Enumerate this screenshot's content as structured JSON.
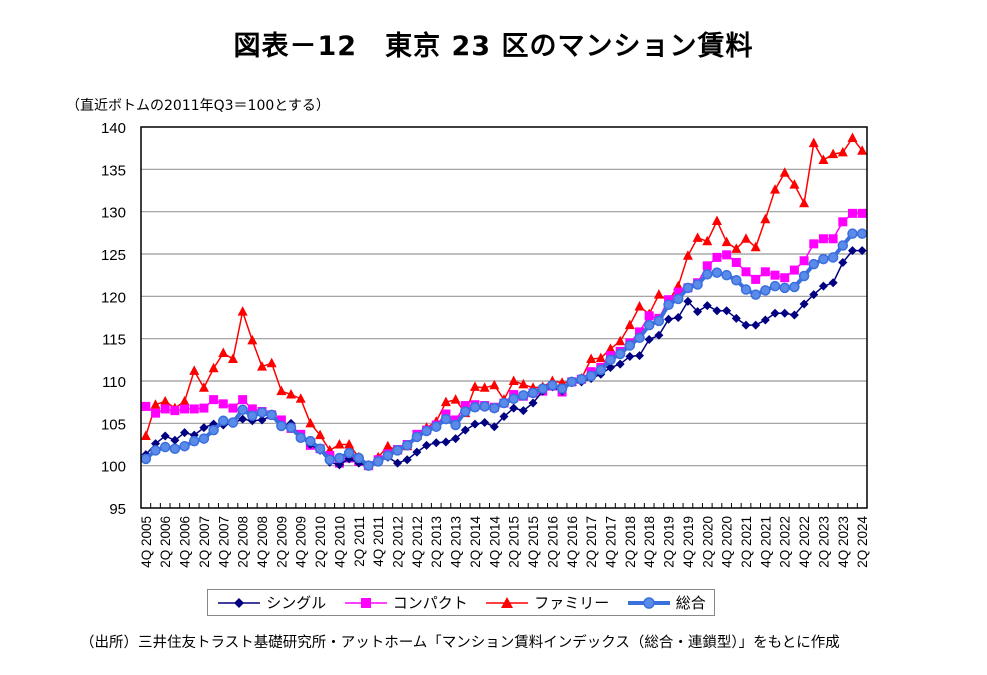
{
  "title": "図表－12　東京 23 区のマンション賃料",
  "subtitle": "（直近ボトムの2011年Q3＝100とする）",
  "source": "（出所）三井住友トラスト基礎研究所・アットホーム「マンション賃料インデックス（総合・連鎖型）」をもとに作成",
  "chart_data": {
    "type": "line",
    "title": "図表－12　東京 23 区のマンション賃料",
    "subtitle": "（直近ボトムの2011年Q3＝100とする）",
    "xlabel": "",
    "ylabel": "",
    "ylim": [
      95,
      140
    ],
    "yticks": [
      95,
      100,
      105,
      110,
      115,
      120,
      125,
      130,
      135,
      140
    ],
    "grid": true,
    "legend_position": "bottom",
    "x": [
      "4Q 2005",
      "1Q 2006",
      "2Q 2006",
      "3Q 2006",
      "4Q 2006",
      "1Q 2007",
      "2Q 2007",
      "3Q 2007",
      "4Q 2007",
      "1Q 2008",
      "2Q 2008",
      "3Q 2008",
      "4Q 2008",
      "1Q 2009",
      "2Q 2009",
      "3Q 2009",
      "4Q 2009",
      "1Q 2010",
      "2Q 2010",
      "3Q 2010",
      "4Q 2010",
      "1Q 2011",
      "2Q 2011",
      "3Q 2011",
      "4Q 2011",
      "1Q 2012",
      "2Q 2012",
      "3Q 2012",
      "4Q 2012",
      "1Q 2013",
      "2Q 2013",
      "3Q 2013",
      "4Q 2013",
      "1Q 2014",
      "2Q 2014",
      "3Q 2014",
      "4Q 2014",
      "1Q 2015",
      "2Q 2015",
      "3Q 2015",
      "4Q 2015",
      "1Q 2016",
      "2Q 2016",
      "3Q 2016",
      "4Q 2016",
      "1Q 2017",
      "2Q 2017",
      "3Q 2017",
      "4Q 2017",
      "1Q 2018",
      "2Q 2018",
      "3Q 2018",
      "4Q 2018",
      "1Q 2019",
      "2Q 2019",
      "3Q 2019",
      "4Q 2019",
      "1Q 2020",
      "2Q 2020",
      "3Q 2020",
      "4Q 2020",
      "1Q 2021",
      "2Q 2021",
      "3Q 2021",
      "4Q 2021",
      "1Q 2022",
      "2Q 2022",
      "3Q 2022",
      "4Q 2022",
      "1Q 2023",
      "2Q 2023",
      "3Q 2023",
      "4Q 2023",
      "1Q 2024",
      "2Q 2024"
    ],
    "tick_labels": [
      "4Q 2005",
      "2Q 2006",
      "4Q 2006",
      "2Q 2007",
      "4Q 2007",
      "2Q 2008",
      "4Q 2008",
      "2Q 2009",
      "4Q 2009",
      "2Q 2010",
      "4Q 2010",
      "2Q 2011",
      "4Q 2011",
      "2Q 2012",
      "4Q 2012",
      "2Q 2013",
      "4Q 2013",
      "2Q 2014",
      "4Q 2014",
      "2Q 2015",
      "4Q 2015",
      "2Q 2016",
      "4Q 2016",
      "2Q 2017",
      "4Q 2017",
      "2Q 2018",
      "4Q 2018",
      "2Q 2019",
      "4Q 2019",
      "2Q 2020",
      "4Q 2020",
      "2Q 2021",
      "4Q 2021",
      "2Q 2022",
      "4Q 2022",
      "2Q 2023",
      "4Q 2023",
      "2Q 2024"
    ],
    "series": [
      {
        "name": "シングル",
        "color": "#000080",
        "marker": "diamond",
        "values": [
          101.3,
          102.6,
          103.5,
          103.0,
          103.9,
          103.6,
          104.5,
          104.9,
          104.8,
          105.0,
          105.5,
          105.3,
          105.4,
          105.9,
          104.6,
          105.0,
          103.3,
          102.5,
          101.8,
          100.4,
          100.1,
          100.8,
          100.3,
          100.0,
          100.5,
          101.0,
          100.3,
          100.7,
          101.6,
          102.4,
          102.7,
          102.8,
          103.2,
          104.2,
          104.9,
          105.1,
          104.6,
          105.8,
          106.8,
          106.5,
          107.4,
          108.8,
          109.3,
          108.8,
          109.8,
          109.9,
          110.3,
          110.8,
          111.6,
          112.0,
          112.9,
          113.0,
          114.9,
          115.4,
          117.3,
          117.5,
          119.4,
          118.2,
          118.9,
          118.3,
          118.3,
          117.4,
          116.6,
          116.6,
          117.2,
          118.0,
          118.0,
          117.8,
          119.1,
          120.2,
          121.2,
          121.6,
          124.0,
          125.4,
          125.4
        ]
      },
      {
        "name": "コンパクト",
        "color": "#FF00FF",
        "marker": "square",
        "values": [
          107.0,
          106.2,
          106.7,
          106.5,
          106.7,
          106.7,
          106.8,
          107.8,
          107.3,
          106.8,
          107.8,
          106.7,
          106.4,
          106.0,
          105.4,
          104.4,
          103.7,
          102.4,
          102.0,
          101.2,
          100.3,
          100.9,
          100.5,
          100.0,
          100.7,
          101.4,
          101.9,
          102.5,
          103.7,
          104.2,
          104.8,
          106.1,
          105.4,
          107.1,
          107.2,
          107.1,
          106.9,
          107.4,
          108.4,
          108.2,
          108.6,
          108.8,
          109.4,
          108.7,
          109.9,
          110.2,
          111.1,
          111.6,
          113.0,
          113.5,
          114.5,
          115.8,
          117.7,
          117.4,
          119.6,
          120.5,
          121.0,
          121.6,
          123.6,
          124.6,
          124.9,
          124.0,
          122.9,
          122.0,
          122.9,
          122.5,
          122.2,
          123.1,
          124.2,
          126.2,
          126.8,
          126.8,
          128.8,
          129.8,
          129.8
        ]
      },
      {
        "name": "ファミリー",
        "color": "#FF0000",
        "marker": "triangle",
        "values": [
          103.5,
          107.2,
          107.6,
          106.8,
          107.6,
          111.2,
          109.2,
          111.5,
          113.3,
          112.6,
          118.2,
          114.8,
          111.7,
          112.1,
          108.8,
          108.4,
          107.9,
          105.0,
          103.6,
          101.8,
          102.5,
          102.5,
          101.0,
          100.0,
          101.0,
          102.3,
          101.8,
          102.3,
          103.5,
          104.5,
          105.2,
          107.5,
          107.8,
          106.2,
          109.3,
          109.2,
          109.5,
          107.8,
          110.0,
          109.6,
          109.2,
          109.3,
          110.0,
          109.8,
          109.9,
          110.3,
          112.6,
          112.7,
          113.8,
          114.7,
          116.6,
          118.8,
          117.9,
          120.2,
          119.5,
          121.2,
          124.8,
          126.9,
          126.5,
          128.9,
          126.4,
          125.6,
          126.8,
          125.8,
          129.1,
          132.6,
          134.6,
          133.2,
          131.0,
          138.1,
          136.1,
          136.8,
          137.0,
          138.7,
          137.2
        ]
      },
      {
        "name": "総合",
        "color": "#3A6FDE",
        "marker": "circle",
        "values": [
          100.8,
          101.8,
          102.2,
          102.0,
          102.3,
          102.9,
          103.2,
          104.2,
          105.3,
          105.1,
          106.6,
          105.9,
          106.3,
          106.0,
          104.7,
          104.5,
          103.3,
          102.9,
          102.0,
          100.7,
          100.9,
          101.5,
          100.9,
          100.0,
          100.5,
          101.2,
          101.8,
          102.4,
          103.4,
          104.1,
          104.6,
          105.5,
          104.8,
          106.4,
          106.9,
          107.0,
          106.8,
          107.4,
          107.9,
          108.3,
          108.6,
          109.1,
          109.5,
          109.1,
          109.9,
          110.2,
          110.6,
          111.3,
          112.5,
          113.2,
          114.2,
          115.1,
          116.6,
          117.1,
          119.0,
          119.7,
          121.0,
          121.4,
          122.6,
          122.8,
          122.5,
          121.9,
          120.8,
          120.2,
          120.7,
          121.2,
          121.0,
          121.1,
          122.4,
          123.8,
          124.4,
          124.6,
          126.0,
          127.4,
          127.4
        ]
      }
    ]
  }
}
